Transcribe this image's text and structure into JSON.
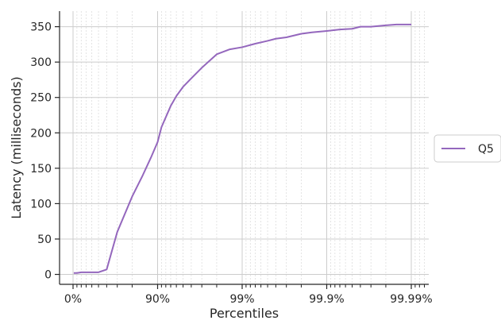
{
  "chart_data": {
    "type": "line",
    "title": "",
    "xlabel": "Percentiles",
    "ylabel": "Latency (milliseconds)",
    "x_scale": "percentile-log (nines)",
    "xlim": [
      0,
      99.995
    ],
    "ylim": [
      -14,
      372
    ],
    "x_ticks": [
      {
        "value": 0,
        "label": "0%"
      },
      {
        "value": 90,
        "label": "90%"
      },
      {
        "value": 99,
        "label": "99%"
      },
      {
        "value": 99.9,
        "label": "99.9%"
      },
      {
        "value": 99.99,
        "label": "99.99%"
      }
    ],
    "y_ticks": [
      0,
      50,
      100,
      150,
      200,
      250,
      300,
      350
    ],
    "grid": true,
    "legend_position": "right",
    "series": [
      {
        "name": "Q5",
        "color": "#9467bd",
        "points": [
          {
            "x": 2,
            "y": 2
          },
          {
            "x": 10,
            "y": 2
          },
          {
            "x": 20,
            "y": 3
          },
          {
            "x": 30,
            "y": 3
          },
          {
            "x": 40,
            "y": 3
          },
          {
            "x": 50,
            "y": 3
          },
          {
            "x": 60,
            "y": 7
          },
          {
            "x": 70,
            "y": 60
          },
          {
            "x": 80,
            "y": 110
          },
          {
            "x": 85,
            "y": 140
          },
          {
            "x": 88,
            "y": 165
          },
          {
            "x": 90,
            "y": 187
          },
          {
            "x": 91,
            "y": 208
          },
          {
            "x": 93,
            "y": 238
          },
          {
            "x": 94,
            "y": 252
          },
          {
            "x": 95,
            "y": 265
          },
          {
            "x": 96,
            "y": 277
          },
          {
            "x": 97,
            "y": 292
          },
          {
            "x": 98,
            "y": 311
          },
          {
            "x": 98.6,
            "y": 318
          },
          {
            "x": 99,
            "y": 321
          },
          {
            "x": 99.3,
            "y": 326
          },
          {
            "x": 99.5,
            "y": 330
          },
          {
            "x": 99.6,
            "y": 333
          },
          {
            "x": 99.7,
            "y": 335
          },
          {
            "x": 99.8,
            "y": 340
          },
          {
            "x": 99.85,
            "y": 342
          },
          {
            "x": 99.9,
            "y": 344
          },
          {
            "x": 99.93,
            "y": 346
          },
          {
            "x": 99.95,
            "y": 347
          },
          {
            "x": 99.96,
            "y": 350
          },
          {
            "x": 99.97,
            "y": 350
          },
          {
            "x": 99.98,
            "y": 352
          },
          {
            "x": 99.985,
            "y": 353
          },
          {
            "x": 99.99,
            "y": 353
          }
        ]
      }
    ]
  }
}
